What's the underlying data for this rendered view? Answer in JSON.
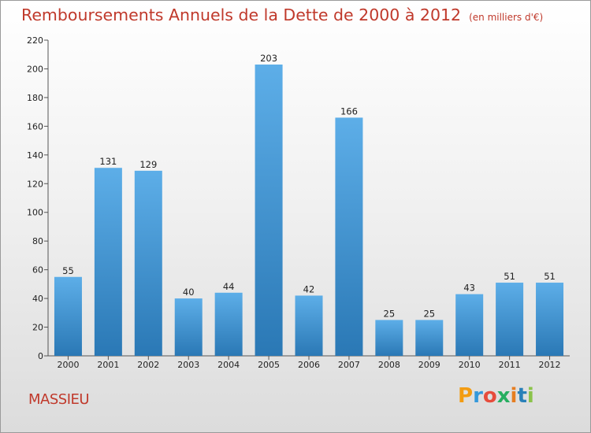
{
  "header": {
    "title": "Remboursements Annuels de la Dette de 2000 à 2012",
    "subtitle": "(en milliers d'€)"
  },
  "footer": {
    "commune": "MASSIEU",
    "logo_text": "Proxiti"
  },
  "colors": {
    "title": "#c0392b",
    "bar_top": "#5daee8",
    "bar_bottom": "#2a78b5"
  },
  "chart_data": {
    "type": "bar",
    "title": "Remboursements Annuels de la Dette de 2000 à 2012",
    "subtitle": "(en milliers d'€)",
    "xlabel": "",
    "ylabel": "",
    "categories": [
      "2000",
      "2001",
      "2002",
      "2003",
      "2004",
      "2005",
      "2006",
      "2007",
      "2008",
      "2009",
      "2010",
      "2011",
      "2012"
    ],
    "values": [
      55,
      131,
      129,
      40,
      44,
      203,
      42,
      166,
      25,
      25,
      43,
      51,
      51
    ],
    "data_labels": [
      "55",
      "131",
      "129",
      "40",
      "44",
      "203",
      "42",
      "166",
      "25",
      "25",
      "43",
      "51",
      "51"
    ],
    "ylim": [
      0,
      220
    ],
    "yticks": [
      0,
      20,
      40,
      60,
      80,
      100,
      120,
      140,
      160,
      180,
      200,
      220
    ],
    "grid": false,
    "legend": "none"
  }
}
